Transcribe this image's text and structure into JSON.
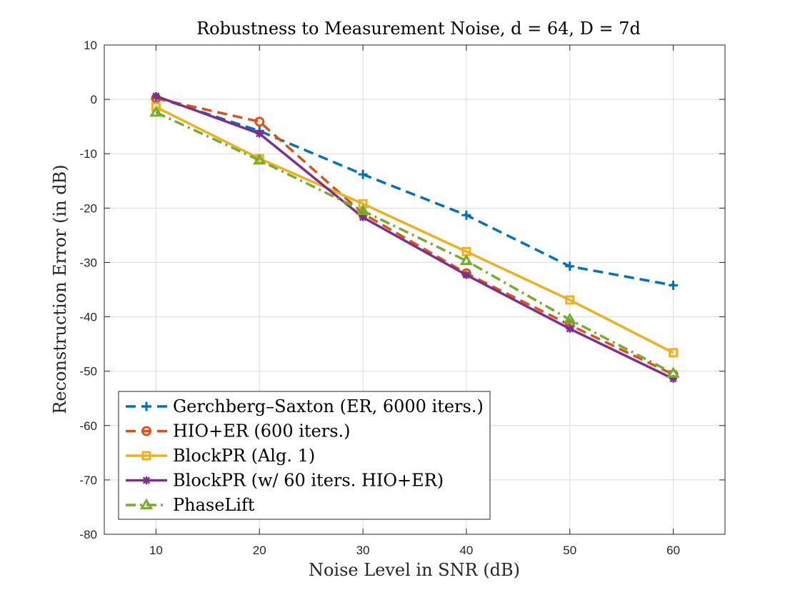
{
  "chart_data": {
    "type": "line",
    "title": "Robustness to Measurement Noise, d = 64, D = 7d",
    "xlabel": "Noise Level in SNR (dB)",
    "ylabel": "Reconstruction Error (in dB)",
    "xlim": [
      5,
      65
    ],
    "ylim": [
      -80,
      10
    ],
    "xticks": [
      10,
      20,
      30,
      40,
      50,
      60
    ],
    "yticks": [
      10,
      0,
      -10,
      -20,
      -30,
      -40,
      -50,
      -60,
      -70,
      -80
    ],
    "grid": true,
    "legend_position": "bottom-left",
    "x": [
      10,
      20,
      30,
      40,
      50,
      60
    ],
    "series": [
      {
        "name": "Gerchberg–Saxton (ER, 6000 iters.)",
        "color": "#0072BD",
        "dash": "dashed",
        "marker": "plus",
        "values": [
          0.4,
          -5.8,
          -13.8,
          -21.3,
          -30.7,
          -34.2
        ]
      },
      {
        "name": "HIO+ER (600 iters.)",
        "color": "#D95319",
        "dash": "dashed",
        "marker": "circle",
        "values": [
          0.2,
          -4.1,
          -21.0,
          -32.0,
          -41.5,
          -50.6
        ]
      },
      {
        "name": "BlockPR (Alg. 1)",
        "color": "#EDB120",
        "dash": "solid",
        "marker": "square",
        "values": [
          -1.4,
          -10.9,
          -19.2,
          -28.0,
          -36.9,
          -46.6
        ]
      },
      {
        "name": "BlockPR (w/ 60 iters. HIO+ER)",
        "color": "#7E2F8E",
        "dash": "solid",
        "marker": "star",
        "values": [
          0.6,
          -6.3,
          -21.7,
          -32.3,
          -42.2,
          -51.4
        ]
      },
      {
        "name": "PhaseLift",
        "color": "#77AC30",
        "dash": "dashdot",
        "marker": "triangle",
        "values": [
          -2.4,
          -11.2,
          -20.5,
          -29.7,
          -40.5,
          -50.4
        ]
      }
    ]
  }
}
